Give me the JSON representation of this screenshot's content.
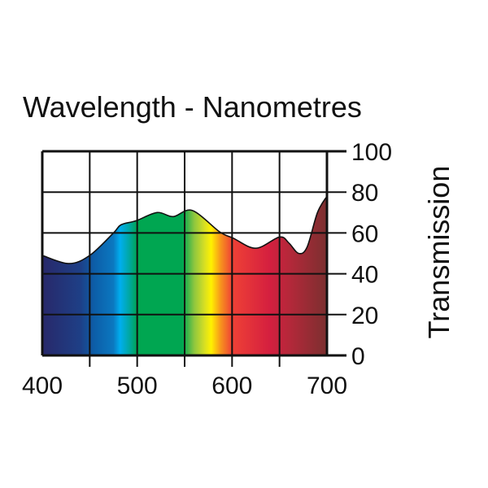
{
  "chart_data": {
    "type": "area",
    "title": "Wavelength - Nanometres",
    "xlabel": "Wavelength - Nanometres",
    "ylabel": "Transmission",
    "xlim": [
      400,
      700
    ],
    "ylim": [
      0,
      100
    ],
    "x_ticks": [
      400,
      500,
      600,
      700
    ],
    "x_tick_labels": [
      "400",
      "500",
      "600",
      "700"
    ],
    "x_grid": [
      400,
      450,
      500,
      550,
      600,
      650,
      700
    ],
    "y_ticks": [
      0,
      20,
      40,
      60,
      80,
      100
    ],
    "y_tick_labels": [
      "0",
      "20",
      "40",
      "60",
      "80",
      "100"
    ],
    "grid": true,
    "series": [
      {
        "name": "Transmission",
        "x": [
          400,
          428,
          450,
          475,
          483,
          499,
          521,
          538,
          558,
          587,
          601,
          625,
          650,
          660,
          670,
          679,
          690,
          700
        ],
        "y": [
          49,
          45,
          49,
          60,
          64,
          66,
          70,
          68,
          71,
          60.5,
          57.5,
          52.5,
          58,
          55,
          50,
          53,
          70,
          78
        ]
      }
    ],
    "spectrum_fill": [
      {
        "nm": 400,
        "color": "#28286a"
      },
      {
        "nm": 440,
        "color": "#1e3f86"
      },
      {
        "nm": 455,
        "color": "#0c5ea8"
      },
      {
        "nm": 475,
        "color": "#0b78c0"
      },
      {
        "nm": 482,
        "color": "#00aeef"
      },
      {
        "nm": 492,
        "color": "#00a7a0"
      },
      {
        "nm": 500,
        "color": "#00a651"
      },
      {
        "nm": 548,
        "color": "#00a651"
      },
      {
        "nm": 560,
        "color": "#8dc63f"
      },
      {
        "nm": 571,
        "color": "#d7df23"
      },
      {
        "nm": 578,
        "color": "#fff200"
      },
      {
        "nm": 588,
        "color": "#f7941d"
      },
      {
        "nm": 600,
        "color": "#ef4136"
      },
      {
        "nm": 640,
        "color": "#d41f3f"
      },
      {
        "nm": 660,
        "color": "#b5283a"
      },
      {
        "nm": 700,
        "color": "#7b2f2f"
      }
    ]
  }
}
